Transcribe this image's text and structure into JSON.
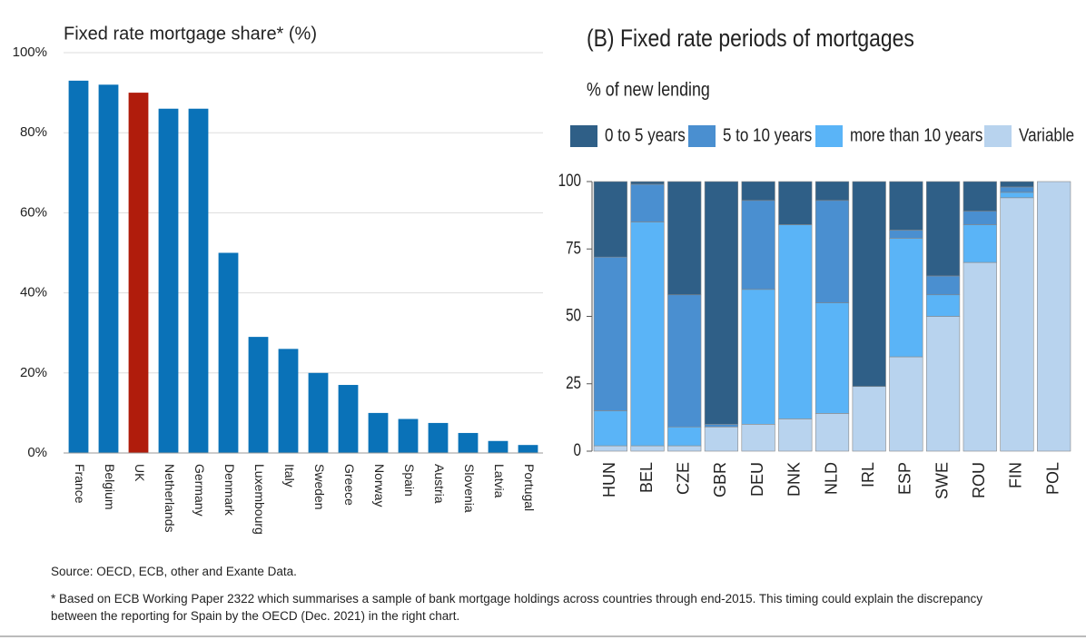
{
  "chart_data": [
    {
      "type": "bar",
      "title": "Fixed rate mortgage share* (%)",
      "categories": [
        "France",
        "Belgium",
        "UK",
        "Netherlands",
        "Germany",
        "Denmark",
        "Luxembourg",
        "Italy",
        "Sweden",
        "Greece",
        "Norway",
        "Spain",
        "Austria",
        "Slovenia",
        "Latvia",
        "Portugal"
      ],
      "values": [
        93,
        92,
        90,
        86,
        86,
        50,
        29,
        26,
        20,
        17,
        10,
        8.5,
        7.5,
        5,
        3,
        2
      ],
      "colors": [
        "#0a72b8",
        "#0a72b8",
        "#b01c0c",
        "#0a72b8",
        "#0a72b8",
        "#0a72b8",
        "#0a72b8",
        "#0a72b8",
        "#0a72b8",
        "#0a72b8",
        "#0a72b8",
        "#0a72b8",
        "#0a72b8",
        "#0a72b8",
        "#0a72b8",
        "#0a72b8"
      ],
      "ylim": [
        0,
        100
      ],
      "yticks": [
        {
          "value": 0,
          "label": "0%"
        },
        {
          "value": 20,
          "label": "20%"
        },
        {
          "value": 40,
          "label": "40%"
        },
        {
          "value": 60,
          "label": "60%"
        },
        {
          "value": 80,
          "label": "80%"
        },
        {
          "value": 100,
          "label": "100%"
        }
      ],
      "grid": true
    },
    {
      "type": "stacked_bar",
      "title": "(B) Fixed rate periods of mortgages",
      "subtitle": "% of new lending",
      "categories": [
        "HUN",
        "BEL",
        "CZE",
        "GBR",
        "DEU",
        "DNK",
        "NLD",
        "IRL",
        "ESP",
        "SWE",
        "ROU",
        "FIN",
        "POL"
      ],
      "series": [
        {
          "name": "0 to 5 years",
          "color": "#2f5f87",
          "values": [
            28,
            1,
            42,
            90,
            7,
            16,
            7,
            76,
            18,
            35,
            11,
            2,
            0
          ]
        },
        {
          "name": "5 to 10 years",
          "color": "#4a8fd0",
          "values": [
            57,
            14,
            49,
            1,
            33,
            0,
            38,
            0,
            3,
            7,
            5,
            2,
            0
          ]
        },
        {
          "name": "more than 10 years",
          "color": "#5ab4f7",
          "values": [
            13,
            83,
            7,
            0,
            50,
            72,
            41,
            0,
            44,
            8,
            14,
            2,
            0
          ]
        },
        {
          "name": "Variable",
          "color": "#b8d3ee",
          "values": [
            2,
            2,
            2,
            9,
            10,
            12,
            14,
            24,
            35,
            50,
            70,
            94,
            100
          ]
        }
      ],
      "ylim": [
        0,
        100
      ],
      "yticks": [
        0,
        25,
        50,
        75,
        100
      ],
      "grid": false
    }
  ],
  "footer": {
    "source": "Source: OECD, ECB, other and Exante Data.",
    "note": "* Based on ECB Working Paper 2322 which summarises a sample of bank mortgage holdings across countries through end-2015. This timing could explain the discrepancy between the reporting for Spain by the OECD (Dec. 2021) in the right chart."
  }
}
